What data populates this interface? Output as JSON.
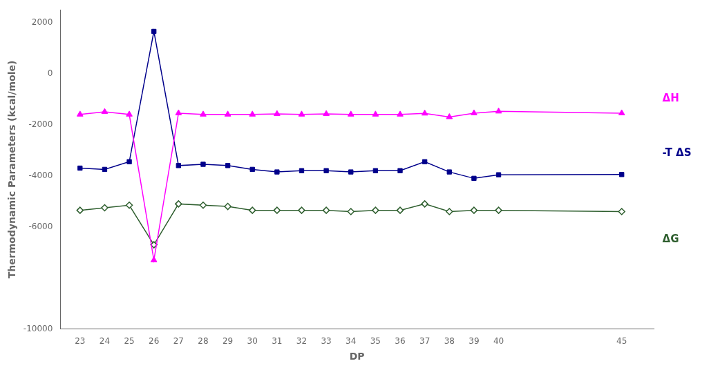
{
  "chart_data": {
    "type": "line",
    "x_label": "DP",
    "y_label": "Thermodynamic Parameters (kcal/mole)",
    "x": [
      23,
      24,
      25,
      26,
      27,
      28,
      29,
      30,
      31,
      32,
      33,
      34,
      35,
      36,
      37,
      38,
      39,
      40,
      45
    ],
    "series": [
      {
        "name": "ΔH",
        "color": "#FF00FF",
        "marker": "triangle",
        "values": [
          -1600,
          -1500,
          -1600,
          -7300,
          -1550,
          -1600,
          -1600,
          -1600,
          -1580,
          -1600,
          -1580,
          -1600,
          -1600,
          -1600,
          -1560,
          -1700,
          -1550,
          -1480,
          -1550
        ]
      },
      {
        "name": "-T ΔS",
        "color": "#00008B",
        "marker": "square",
        "values": [
          -3700,
          -3750,
          -3450,
          1650,
          -3600,
          -3550,
          -3600,
          -3750,
          -3850,
          -3800,
          -3800,
          -3850,
          -3800,
          -3800,
          -3450,
          -3850,
          -4100,
          -3960,
          -3950
        ]
      },
      {
        "name": "ΔG",
        "color": "#2F5F2F",
        "marker": "open_diamond",
        "values": [
          -5350,
          -5250,
          -5150,
          -6700,
          -5100,
          -5150,
          -5200,
          -5350,
          -5350,
          -5350,
          -5350,
          -5400,
          -5350,
          -5350,
          -5100,
          -5400,
          -5350,
          -5350,
          -5400
        ]
      }
    ],
    "xlim": [
      22.2,
      46.3
    ],
    "xticks": [
      23,
      24,
      25,
      26,
      27,
      28,
      29,
      30,
      31,
      32,
      33,
      34,
      35,
      36,
      37,
      38,
      39,
      40,
      45
    ],
    "ylim": [
      -10000,
      2500
    ],
    "yticks": [
      -10000,
      {
        "value": -8000,
        "label": ""
      },
      -6000,
      -4000,
      -2000,
      0,
      2000
    ],
    "grid": false
  }
}
